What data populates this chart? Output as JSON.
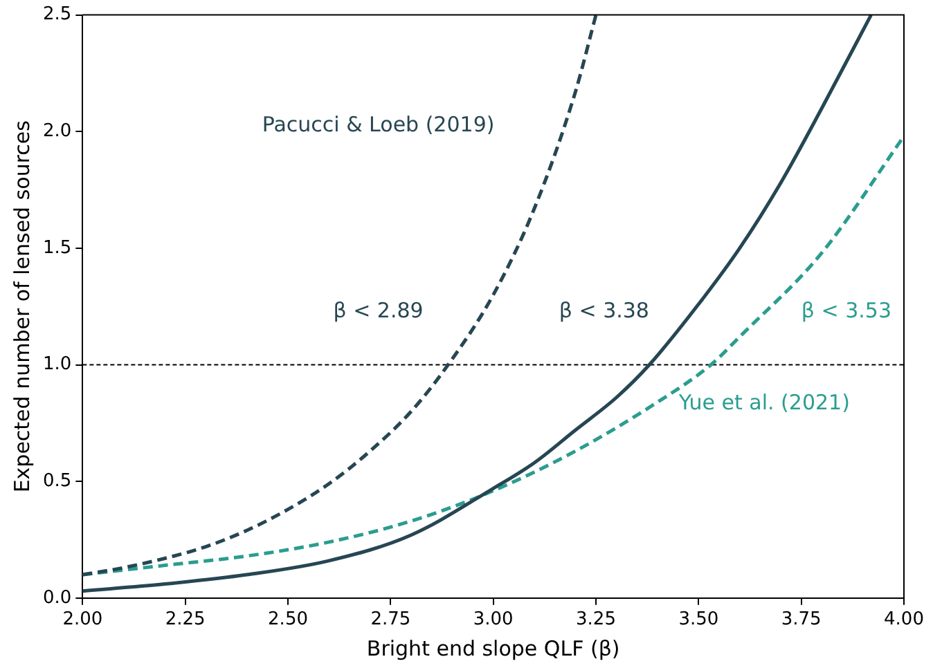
{
  "chart_data": {
    "type": "line",
    "xlabel": "Bright end slope QLF (β)",
    "ylabel": "Expected number of lensed sources",
    "xlim": [
      2.0,
      4.0
    ],
    "ylim": [
      0,
      2.5
    ],
    "xticks": [
      {
        "value": 2.0,
        "label": "2.00"
      },
      {
        "value": 2.25,
        "label": "2.25"
      },
      {
        "value": 2.5,
        "label": "2.50"
      },
      {
        "value": 2.75,
        "label": "2.75"
      },
      {
        "value": 3.0,
        "label": "3.00"
      },
      {
        "value": 3.25,
        "label": "3.25"
      },
      {
        "value": 3.5,
        "label": "3.50"
      },
      {
        "value": 3.75,
        "label": "3.75"
      },
      {
        "value": 4.0,
        "label": "4.00"
      }
    ],
    "yticks": [
      {
        "value": 0,
        "label": "0.0"
      },
      {
        "value": 0.5,
        "label": "0.5"
      },
      {
        "value": 1.0,
        "label": "1.0"
      },
      {
        "value": 1.5,
        "label": "1.5"
      },
      {
        "value": 2.0,
        "label": "2.0"
      },
      {
        "value": 2.5,
        "label": "2.5"
      }
    ],
    "grid": false,
    "legend": false,
    "marker": "none",
    "series": [
      {
        "color": "#264653",
        "line_style": "dashed",
        "x": [
          2.0,
          2.1,
          2.2,
          2.3,
          2.4,
          2.5,
          2.6,
          2.7,
          2.8,
          2.89,
          3.0,
          3.1,
          3.2,
          3.25
        ],
        "values": [
          0.1,
          0.13,
          0.17,
          0.22,
          0.29,
          0.38,
          0.49,
          0.63,
          0.8,
          1.0,
          1.3,
          1.67,
          2.17,
          2.5
        ]
      },
      {
        "color": "#264653",
        "line_style": "solid",
        "x": [
          2.0,
          2.2,
          2.4,
          2.6,
          2.8,
          3.0,
          3.1,
          3.2,
          3.3,
          3.38,
          3.5,
          3.6,
          3.7,
          3.8,
          3.92
        ],
        "values": [
          0.03,
          0.06,
          0.1,
          0.16,
          0.27,
          0.47,
          0.58,
          0.72,
          0.86,
          1.0,
          1.26,
          1.5,
          1.78,
          2.1,
          2.5
        ]
      },
      {
        "color": "#2a9d8f",
        "line_style": "dashed",
        "x": [
          2.0,
          2.2,
          2.4,
          2.6,
          2.8,
          3.0,
          3.2,
          3.4,
          3.53,
          3.6,
          3.8,
          4.0
        ],
        "values": [
          0.1,
          0.14,
          0.18,
          0.24,
          0.33,
          0.46,
          0.63,
          0.84,
          1.0,
          1.12,
          1.48,
          1.98
        ]
      }
    ],
    "ref_lines": [
      {
        "axis": "y",
        "value": 1.0,
        "color": "#000000",
        "line_style": "dashed"
      }
    ],
    "annotations": [
      "Pacucci & Loeb (2019)",
      "β < 2.89",
      "β < 3.38",
      "β < 3.53",
      "Yue et al. (2021)"
    ]
  }
}
